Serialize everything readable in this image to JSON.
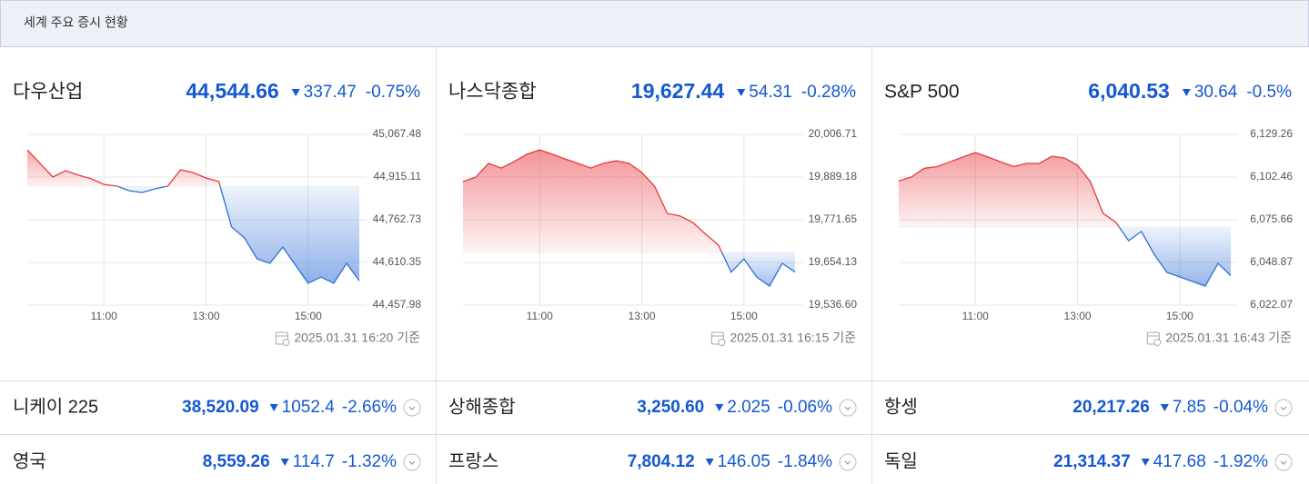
{
  "header": {
    "title": "세계 주요 증시 현황"
  },
  "chart_data": [
    {
      "type": "line",
      "title": "다우산업",
      "value": "44,544.66",
      "change": "337.47",
      "change_pct": "-0.75%",
      "x": [
        9.5,
        9.75,
        10,
        10.25,
        10.5,
        10.75,
        11,
        11.25,
        11.5,
        11.75,
        12,
        12.25,
        12.5,
        12.75,
        13,
        13.25,
        13.5,
        13.75,
        14,
        14.25,
        14.5,
        14.75,
        15,
        15.25,
        15.5,
        15.75,
        16
      ],
      "values": [
        45012,
        44964,
        44915,
        44938,
        44922,
        44909,
        44889,
        44883,
        44866,
        44860,
        44873,
        44883,
        44941,
        44931,
        44912,
        44899,
        44737,
        44698,
        44623,
        44607,
        44665,
        44601,
        44536,
        44558,
        44536,
        44607,
        44544.66
      ],
      "reference": 44882.13,
      "xlim": [
        9.5,
        16
      ],
      "xticks": [
        {
          "value": 11,
          "label": "11:00"
        },
        {
          "value": 13,
          "label": "13:00"
        },
        {
          "value": 15,
          "label": "15:00"
        }
      ],
      "ylim": [
        44457.98,
        45067.48
      ],
      "yticks": [
        {
          "value": 45067.48,
          "label": "45,067.48"
        },
        {
          "value": 44915.11,
          "label": "44,915.11"
        },
        {
          "value": 44762.73,
          "label": "44,762.73"
        },
        {
          "value": 44610.35,
          "label": "44,610.35"
        },
        {
          "value": 44457.98,
          "label": "44,457.98"
        }
      ],
      "grid": true,
      "up_color": "#e8383d",
      "down_color": "#2f6fd6",
      "timestamp": "2025.01.31 16:20 기준"
    },
    {
      "type": "line",
      "title": "나스닥종합",
      "value": "19,627.44",
      "change": "54.31",
      "change_pct": "-0.28%",
      "x": [
        9.5,
        9.75,
        10,
        10.25,
        10.5,
        10.75,
        11,
        11.25,
        11.5,
        11.75,
        12,
        12.25,
        12.5,
        12.75,
        13,
        13.25,
        13.5,
        13.75,
        14,
        14.25,
        14.5,
        14.75,
        15,
        15.25,
        15.5,
        15.75,
        16
      ],
      "values": [
        19877,
        19889,
        19927,
        19914,
        19932,
        19952,
        19964,
        19952,
        19939,
        19927,
        19914,
        19927,
        19934,
        19927,
        19902,
        19864,
        19789,
        19782,
        19764,
        19732,
        19702,
        19627,
        19664,
        19614,
        19589,
        19652,
        19627.44
      ],
      "reference": 19681.75,
      "xlim": [
        9.5,
        16
      ],
      "xticks": [
        {
          "value": 11,
          "label": "11:00"
        },
        {
          "value": 13,
          "label": "13:00"
        },
        {
          "value": 15,
          "label": "15:00"
        }
      ],
      "ylim": [
        19536.6,
        20006.71
      ],
      "yticks": [
        {
          "value": 20006.71,
          "label": "20,006.71"
        },
        {
          "value": 19889.18,
          "label": "19,889.18"
        },
        {
          "value": 19771.65,
          "label": "19,771.65"
        },
        {
          "value": 19654.13,
          "label": "19,654.13"
        },
        {
          "value": 19536.6,
          "label": "19,536.60"
        }
      ],
      "grid": true,
      "up_color": "#e8383d",
      "down_color": "#2f6fd6",
      "timestamp": "2025.01.31 16:15 기준"
    },
    {
      "type": "line",
      "title": "S&P 500",
      "value": "6,040.53",
      "change": "30.64",
      "change_pct": "-0.5%",
      "x": [
        9.5,
        9.75,
        10,
        10.25,
        10.5,
        10.75,
        11,
        11.25,
        11.5,
        11.75,
        12,
        12.25,
        12.5,
        12.75,
        13,
        13.25,
        13.5,
        13.75,
        14,
        14.25,
        14.5,
        14.75,
        15,
        15.25,
        15.5,
        15.75,
        16
      ],
      "values": [
        6100,
        6102.5,
        6108,
        6109,
        6112,
        6115,
        6117.9,
        6115,
        6112,
        6109,
        6111,
        6111,
        6115.6,
        6114.4,
        6109.9,
        6099.6,
        6079.7,
        6074,
        6062.5,
        6068.3,
        6054,
        6042.6,
        6039.8,
        6036.9,
        6034,
        6048.3,
        6040.53
      ],
      "reference": 6071.17,
      "xlim": [
        9.5,
        16
      ],
      "xticks": [
        {
          "value": 11,
          "label": "11:00"
        },
        {
          "value": 13,
          "label": "13:00"
        },
        {
          "value": 15,
          "label": "15:00"
        }
      ],
      "ylim": [
        6022.07,
        6129.26
      ],
      "yticks": [
        {
          "value": 6129.26,
          "label": "6,129.26"
        },
        {
          "value": 6102.46,
          "label": "6,102.46"
        },
        {
          "value": 6075.66,
          "label": "6,075.66"
        },
        {
          "value": 6048.87,
          "label": "6,048.87"
        },
        {
          "value": 6022.07,
          "label": "6,022.07"
        }
      ],
      "grid": true,
      "up_color": "#e8383d",
      "down_color": "#2f6fd6",
      "timestamp": "2025.01.31 16:43 기준"
    }
  ],
  "table": {
    "rows": [
      [
        {
          "name": "니케이 225",
          "value": "38,520.09",
          "change": "1052.4",
          "change_pct": "-2.66%"
        },
        {
          "name": "상해종합",
          "value": "3,250.60",
          "change": "2.025",
          "change_pct": "-0.06%"
        },
        {
          "name": "항셍",
          "value": "20,217.26",
          "change": "7.85",
          "change_pct": "-0.04%"
        }
      ],
      [
        {
          "name": "영국",
          "value": "8,559.26",
          "change": "114.7",
          "change_pct": "-1.32%"
        },
        {
          "name": "프랑스",
          "value": "7,804.12",
          "change": "146.05",
          "change_pct": "-1.84%"
        },
        {
          "name": "독일",
          "value": "21,314.37",
          "change": "417.68",
          "change_pct": "-1.92%"
        }
      ]
    ]
  }
}
